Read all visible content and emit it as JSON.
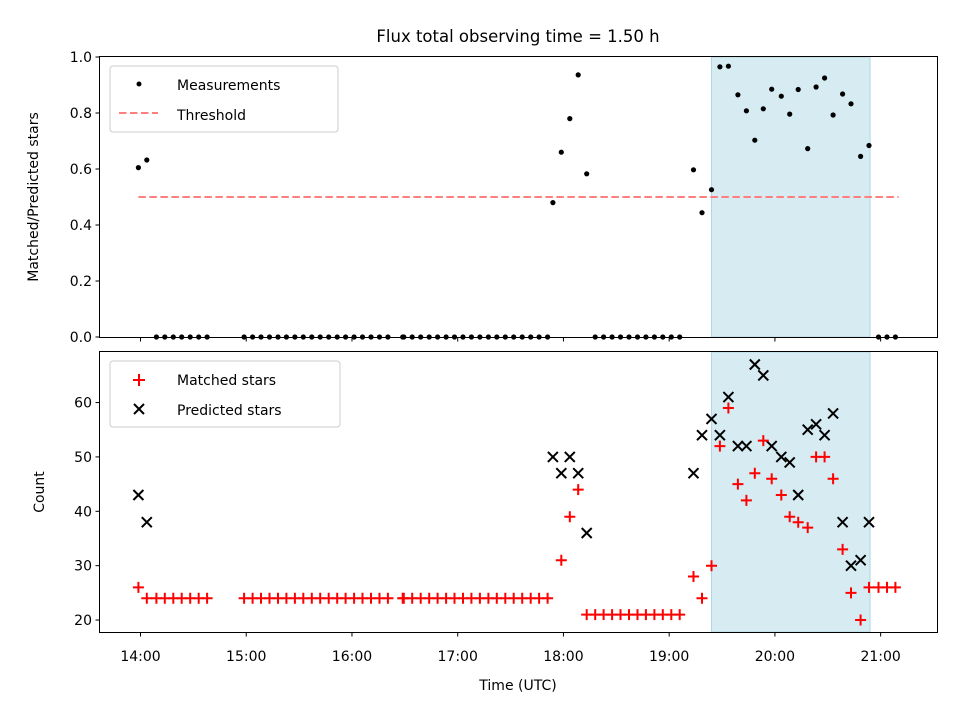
{
  "figure": {
    "title": "Flux total observing time = 1.50 h"
  },
  "colors": {
    "shade": "#add8e6",
    "threshold": "#ff7f7f",
    "matched": "#ff0000",
    "measure": "#000000",
    "predicted": "#000000"
  },
  "chart_data": [
    {
      "type": "scatter",
      "id": "ratio",
      "title": "Flux total observing time = 1.50 h",
      "xlabel": "",
      "ylabel": "Matched/Predicted stars",
      "xlim": [
        13.617,
        21.533
      ],
      "ylim": [
        0,
        1
      ],
      "yticks": [
        "0.0",
        "0.2",
        "0.4",
        "0.6",
        "0.8",
        "1.0"
      ],
      "yticks_values": [
        0,
        0.2,
        0.4,
        0.6,
        0.8,
        1.0
      ],
      "shaded_region": [
        19.4,
        20.9
      ],
      "legend": {
        "position": "top-left",
        "entries": [
          "Measurements",
          "Threshold"
        ]
      },
      "threshold": {
        "value": 0.5,
        "x_range": [
          13.98,
          21.17
        ]
      },
      "series": [
        {
          "name": "Measurements",
          "x": [
            13.98,
            14.06,
            14.15,
            14.23,
            14.31,
            14.39,
            14.47,
            14.55,
            14.63,
            14.98,
            15.06,
            15.14,
            15.22,
            15.3,
            15.38,
            15.46,
            15.54,
            15.62,
            15.7,
            15.78,
            15.86,
            15.94,
            16.02,
            16.1,
            16.18,
            16.26,
            16.34,
            16.48,
            16.49,
            16.57,
            16.65,
            16.73,
            16.81,
            16.89,
            16.97,
            17.05,
            17.13,
            17.21,
            17.29,
            17.37,
            17.45,
            17.53,
            17.61,
            17.69,
            17.77,
            17.85,
            17.9,
            17.98,
            18.06,
            18.14,
            18.22,
            18.3,
            18.38,
            18.46,
            18.54,
            18.62,
            18.7,
            18.78,
            18.86,
            18.94,
            19.02,
            19.1,
            19.23,
            19.31,
            19.4,
            19.48,
            19.56,
            19.65,
            19.73,
            19.81,
            19.89,
            19.97,
            20.06,
            20.14,
            20.22,
            20.31,
            20.39,
            20.47,
            20.55,
            20.64,
            20.72,
            20.81,
            20.89,
            20.98,
            21.06,
            21.14
          ],
          "y": [
            0.605,
            0.632,
            0,
            0,
            0,
            0,
            0,
            0,
            0,
            0,
            0,
            0,
            0,
            0,
            0,
            0,
            0,
            0,
            0,
            0,
            0,
            0,
            0,
            0,
            0,
            0,
            0,
            0,
            0,
            0,
            0,
            0,
            0,
            0,
            0,
            0,
            0,
            0,
            0,
            0,
            0,
            0,
            0,
            0,
            0,
            0,
            0.48,
            0.66,
            0.78,
            0.936,
            0.583,
            0,
            0,
            0,
            0,
            0,
            0,
            0,
            0,
            0,
            0,
            0,
            0.597,
            0.444,
            0.526,
            0.965,
            0.967,
            0.865,
            0.808,
            0.703,
            0.815,
            0.885,
            0.86,
            0.796,
            0.884,
            0.673,
            0.893,
            0.925,
            0.793,
            0.868,
            0.833,
            0.645,
            0.684,
            0,
            0,
            0
          ]
        }
      ]
    },
    {
      "type": "scatter",
      "id": "counts",
      "title": "",
      "xlabel": "Time (UTC)",
      "ylabel": "Count",
      "xlim": [
        13.617,
        21.533
      ],
      "ylim": [
        17.8,
        69.3
      ],
      "yticks": [
        "20",
        "30",
        "40",
        "50",
        "60"
      ],
      "yticks_values": [
        20,
        30,
        40,
        50,
        60
      ],
      "xticks": [
        "14:00",
        "15:00",
        "16:00",
        "17:00",
        "18:00",
        "19:00",
        "20:00",
        "21:00"
      ],
      "xticks_values": [
        14,
        15,
        16,
        17,
        18,
        19,
        20,
        21
      ],
      "shaded_region": [
        19.4,
        20.9
      ],
      "legend": {
        "position": "top-left",
        "entries": [
          "Matched stars",
          "Predicted stars"
        ]
      },
      "series": [
        {
          "name": "Matched stars",
          "x": [
            13.98,
            14.06,
            14.15,
            14.23,
            14.31,
            14.39,
            14.47,
            14.55,
            14.63,
            14.98,
            15.06,
            15.14,
            15.22,
            15.3,
            15.38,
            15.46,
            15.54,
            15.62,
            15.7,
            15.78,
            15.86,
            15.94,
            16.02,
            16.1,
            16.18,
            16.26,
            16.34,
            16.48,
            16.49,
            16.57,
            16.65,
            16.73,
            16.81,
            16.89,
            16.97,
            17.05,
            17.13,
            17.21,
            17.29,
            17.37,
            17.45,
            17.53,
            17.61,
            17.69,
            17.77,
            17.85,
            17.98,
            18.06,
            18.14,
            18.22,
            18.3,
            18.38,
            18.46,
            18.54,
            18.62,
            18.7,
            18.78,
            18.86,
            18.94,
            19.02,
            19.1,
            19.23,
            19.31,
            19.4,
            19.48,
            19.56,
            19.65,
            19.73,
            19.81,
            19.89,
            19.97,
            20.06,
            20.14,
            20.22,
            20.31,
            20.39,
            20.47,
            20.55,
            20.64,
            20.72,
            20.81,
            20.89,
            20.98,
            21.06,
            21.14
          ],
          "y": [
            26,
            24,
            24,
            24,
            24,
            24,
            24,
            24,
            24,
            24,
            24,
            24,
            24,
            24,
            24,
            24,
            24,
            24,
            24,
            24,
            24,
            24,
            24,
            24,
            24,
            24,
            24,
            24,
            24,
            24,
            24,
            24,
            24,
            24,
            24,
            24,
            24,
            24,
            24,
            24,
            24,
            24,
            24,
            24,
            24,
            24,
            31,
            39,
            44,
            21,
            21,
            21,
            21,
            21,
            21,
            21,
            21,
            21,
            21,
            21,
            21,
            28,
            24,
            30,
            52,
            59,
            45,
            42,
            47,
            53,
            46,
            43,
            39,
            38,
            37,
            50,
            50,
            46,
            33,
            25,
            20,
            26,
            26,
            26,
            26
          ]
        },
        {
          "name": "Predicted stars",
          "x": [
            13.98,
            14.06,
            17.9,
            17.98,
            18.06,
            18.14,
            18.22,
            19.23,
            19.31,
            19.4,
            19.48,
            19.56,
            19.65,
            19.73,
            19.81,
            19.89,
            19.97,
            20.06,
            20.14,
            20.22,
            20.31,
            20.39,
            20.47,
            20.55,
            20.64,
            20.72,
            20.81,
            20.89
          ],
          "y": [
            43,
            38,
            50,
            47,
            50,
            47,
            36,
            47,
            54,
            57,
            54,
            61,
            52,
            52,
            67,
            65,
            52,
            50,
            49,
            43,
            55,
            56,
            54,
            58,
            38,
            30,
            31,
            38
          ]
        }
      ]
    }
  ]
}
